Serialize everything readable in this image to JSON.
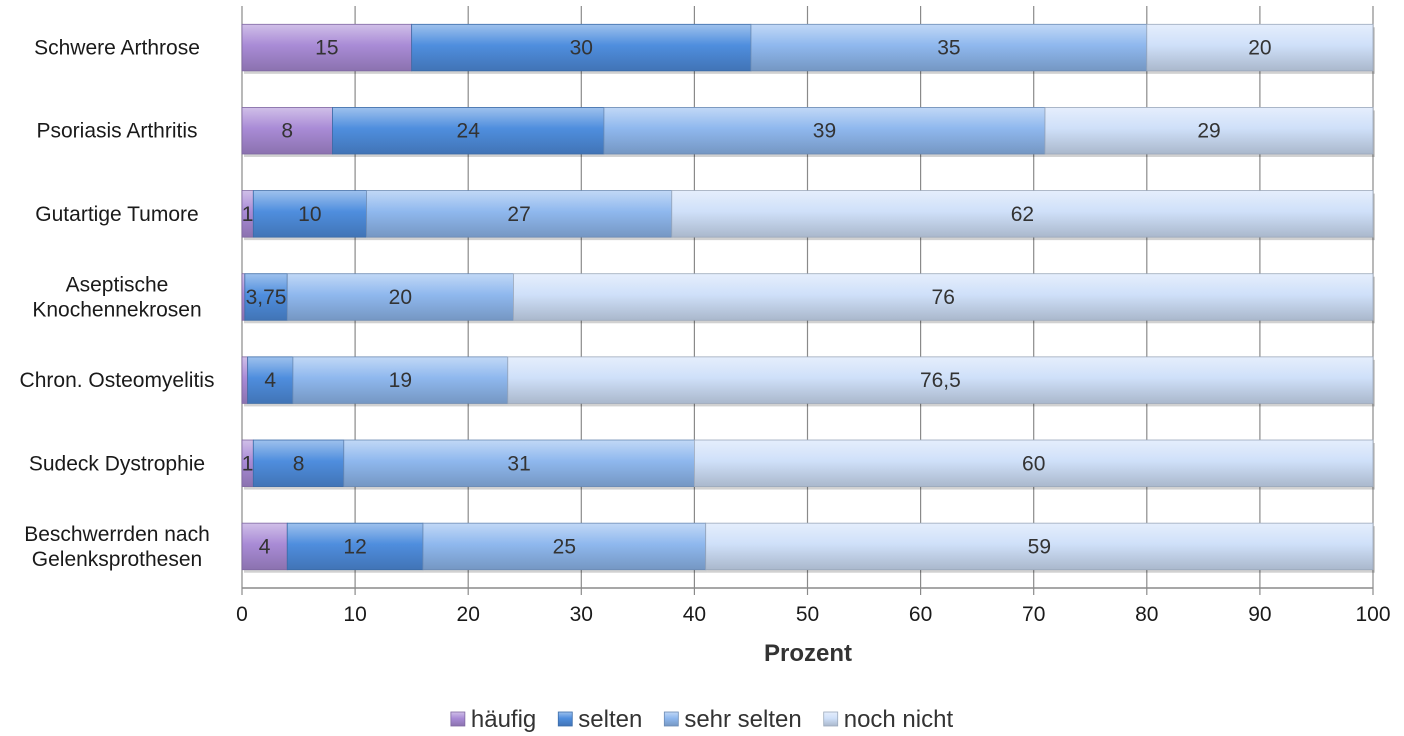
{
  "chart_data": {
    "type": "bar",
    "orientation": "horizontal",
    "stacked": true,
    "categories": [
      "Schwere Arthrose",
      "Psoriasis Arthritis",
      "Gutartige Tumore",
      "Aseptische Knochennekrosen",
      "Chron. Osteomyelitis",
      "Sudeck Dystrophie",
      "Beschwerrden nach Gelenksprothesen"
    ],
    "category_lines": [
      [
        "Schwere Arthrose"
      ],
      [
        "Psoriasis Arthritis"
      ],
      [
        "Gutartige Tumore"
      ],
      [
        "Aseptische",
        "Knochennekrosen"
      ],
      [
        "Chron. Osteomyelitis"
      ],
      [
        "Sudeck Dystrophie"
      ],
      [
        "Beschwerrden nach",
        "Gelenksprothesen"
      ]
    ],
    "series": [
      {
        "name": "häufig",
        "values": [
          15,
          8,
          1,
          0.25,
          0.5,
          1,
          4
        ],
        "labels": [
          "15",
          "8",
          "1",
          "",
          "",
          "1",
          "4"
        ]
      },
      {
        "name": "selten",
        "values": [
          30,
          24,
          10,
          3.75,
          4,
          8,
          12
        ],
        "labels": [
          "30",
          "24",
          "10",
          "3,75",
          "4",
          "8",
          "12"
        ]
      },
      {
        "name": "sehr selten",
        "values": [
          35,
          39,
          27,
          20,
          19,
          31,
          25
        ],
        "labels": [
          "35",
          "39",
          "27",
          "20",
          "19",
          "31",
          "25"
        ]
      },
      {
        "name": "noch nicht",
        "values": [
          20,
          29,
          62,
          76,
          76.5,
          60,
          59
        ],
        "labels": [
          "20",
          "29",
          "62",
          "76",
          "76,5",
          "60",
          "59"
        ]
      }
    ],
    "colors": [
      "#a98bd6",
      "#4f8ede",
      "#8fb8ee",
      "#cfe0f9"
    ],
    "xlabel": "Prozent",
    "ylabel": "",
    "xlim": [
      0,
      100
    ],
    "xticks": [
      0,
      10,
      20,
      30,
      40,
      50,
      60,
      70,
      80,
      90,
      100
    ],
    "grid": true,
    "legend_position": "bottom"
  }
}
